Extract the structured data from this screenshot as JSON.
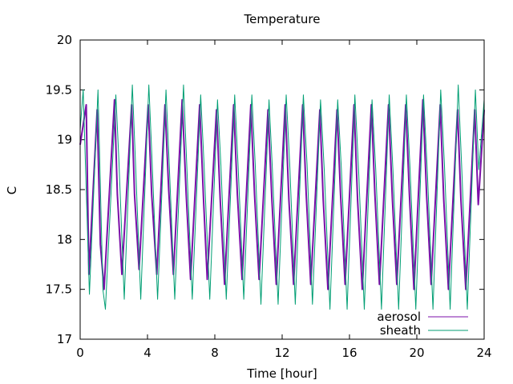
{
  "chart_data": {
    "type": "line",
    "title": "Temperature",
    "xlabel": "Time [hour]",
    "ylabel": "C",
    "xlim": [
      0,
      24
    ],
    "ylim": [
      17,
      20
    ],
    "xticks": [
      0,
      4,
      8,
      12,
      16,
      20,
      24
    ],
    "xtick_labels": [
      "0",
      "4",
      "8",
      "12",
      "16",
      "20",
      "24"
    ],
    "yticks": [
      17,
      17.5,
      18,
      18.5,
      19,
      19.5,
      20
    ],
    "ytick_labels": [
      "17",
      "17.5",
      "18",
      "18.5",
      "19",
      "19.5",
      "20"
    ],
    "grid": false,
    "legend_position": "bottom-right",
    "series": [
      {
        "name": "aerosol",
        "color": "#7b0ea8",
        "x": [
          0.0,
          0.36,
          0.52,
          1.01,
          1.2,
          1.42,
          2.04,
          2.21,
          2.48,
          3.06,
          3.23,
          3.5,
          4.04,
          4.25,
          4.55,
          5.04,
          5.26,
          5.54,
          6.06,
          6.3,
          6.56,
          7.1,
          7.33,
          7.55,
          8.1,
          8.32,
          8.58,
          9.12,
          9.34,
          9.62,
          10.14,
          10.36,
          10.63,
          11.16,
          11.39,
          11.65,
          12.18,
          12.4,
          12.68,
          13.22,
          13.43,
          13.7,
          14.24,
          14.44,
          14.72,
          15.26,
          15.47,
          15.74,
          16.27,
          16.48,
          16.76,
          17.3,
          17.51,
          17.78,
          18.32,
          18.55,
          18.81,
          19.34,
          19.56,
          19.83,
          20.36,
          20.58,
          20.85,
          21.39,
          21.6,
          21.88,
          22.42,
          22.62,
          22.91,
          23.44,
          23.65,
          24.0
        ],
        "y": [
          18.95,
          19.35,
          17.65,
          19.3,
          17.95,
          17.5,
          19.4,
          18.45,
          17.65,
          19.35,
          18.45,
          17.7,
          19.35,
          18.45,
          17.65,
          19.35,
          18.5,
          17.65,
          19.4,
          18.45,
          17.6,
          19.35,
          18.4,
          17.6,
          19.3,
          18.4,
          17.55,
          19.35,
          18.45,
          17.6,
          19.35,
          18.45,
          17.6,
          19.3,
          18.4,
          17.55,
          19.35,
          18.4,
          17.55,
          19.35,
          18.45,
          17.55,
          19.3,
          18.4,
          17.5,
          19.3,
          18.45,
          17.55,
          19.35,
          18.4,
          17.5,
          19.35,
          18.45,
          17.55,
          19.35,
          18.4,
          17.55,
          19.35,
          18.45,
          17.5,
          19.4,
          18.45,
          17.55,
          19.35,
          18.4,
          17.5,
          19.3,
          18.4,
          17.5,
          19.3,
          18.35,
          19.3
        ]
      },
      {
        "name": "sheath",
        "color": "#009e73",
        "x": [
          0.0,
          0.18,
          0.55,
          1.06,
          1.35,
          1.5,
          2.12,
          2.3,
          2.62,
          3.1,
          3.28,
          3.6,
          4.08,
          4.27,
          4.6,
          5.1,
          5.28,
          5.62,
          6.14,
          6.32,
          6.66,
          7.16,
          7.36,
          7.7,
          8.16,
          8.36,
          8.68,
          9.18,
          9.38,
          9.72,
          10.2,
          10.4,
          10.74,
          11.22,
          11.42,
          11.76,
          12.24,
          12.45,
          12.78,
          13.26,
          13.48,
          13.8,
          14.28,
          14.5,
          14.84,
          15.3,
          15.52,
          15.86,
          16.32,
          16.54,
          16.88,
          17.34,
          17.56,
          17.9,
          18.36,
          18.58,
          18.92,
          19.38,
          19.6,
          19.94,
          20.4,
          20.62,
          20.96,
          21.42,
          21.64,
          21.98,
          22.46,
          22.66,
          23.0,
          23.48,
          23.68,
          24.0
        ],
        "y": [
          19.1,
          19.5,
          17.45,
          19.5,
          17.5,
          17.3,
          19.45,
          18.8,
          17.4,
          19.55,
          18.8,
          17.4,
          19.55,
          18.8,
          17.4,
          19.5,
          18.8,
          17.4,
          19.55,
          18.8,
          17.4,
          19.45,
          18.75,
          17.4,
          19.4,
          18.75,
          17.4,
          19.45,
          18.75,
          17.4,
          19.45,
          18.75,
          17.35,
          19.4,
          18.7,
          17.35,
          19.45,
          18.75,
          17.35,
          19.45,
          18.75,
          17.35,
          19.4,
          18.7,
          17.3,
          19.4,
          18.7,
          17.3,
          19.45,
          18.7,
          17.3,
          19.4,
          18.7,
          17.3,
          19.45,
          18.7,
          17.3,
          19.45,
          18.7,
          17.3,
          19.45,
          18.7,
          17.3,
          19.5,
          18.75,
          17.3,
          19.55,
          18.75,
          17.3,
          19.5,
          18.7,
          19.4
        ]
      }
    ]
  }
}
